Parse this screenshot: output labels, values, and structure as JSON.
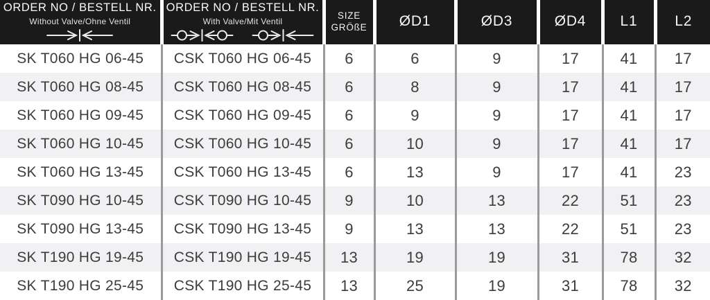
{
  "colors": {
    "header_bg": "#1a1a1a",
    "header_text": "#f5f5f5",
    "header_gap": "#ffffff",
    "body_divider": "#9a9a9a",
    "row_stripe": "#f1f1f3",
    "body_text": "#3c3c3c"
  },
  "table": {
    "columns": [
      {
        "title": "ORDER NO / BESTELL NR.",
        "subtitle": "Without Valve/Ohne Ventil",
        "icon": "coupling-without-valve-icon"
      },
      {
        "title": "ORDER NO / BESTELL NR.",
        "subtitle": "With Valve/Mit Ventil",
        "icons": [
          "coupling-with-valve-closed-icon",
          "coupling-with-valve-open-icon"
        ]
      },
      {
        "title": "SIZE",
        "subtitle": "GRÖßE"
      },
      {
        "title": "ØD1"
      },
      {
        "title": "ØD3"
      },
      {
        "title": "ØD4"
      },
      {
        "title": "L1"
      },
      {
        "title": "L2"
      }
    ],
    "rows": [
      [
        "SK T060 HG 06-45",
        "CSK T060 HG 06-45",
        "6",
        "6",
        "9",
        "17",
        "41",
        "17"
      ],
      [
        "SK T060 HG 08-45",
        "CSK T060 HG 08-45",
        "6",
        "8",
        "9",
        "17",
        "41",
        "17"
      ],
      [
        "SK T060 HG 09-45",
        "CSK T060 HG 09-45",
        "6",
        "9",
        "9",
        "17",
        "41",
        "17"
      ],
      [
        "SK T060 HG 10-45",
        "CSK T060 HG 10-45",
        "6",
        "10",
        "9",
        "17",
        "41",
        "17"
      ],
      [
        "SK T060 HG 13-45",
        "CSK T060 HG 13-45",
        "6",
        "13",
        "9",
        "17",
        "41",
        "23"
      ],
      [
        "SK T090 HG 10-45",
        "CSK T090 HG 10-45",
        "9",
        "10",
        "13",
        "22",
        "51",
        "23"
      ],
      [
        "SK T090 HG 13-45",
        "CSK T090 HG 13-45",
        "9",
        "13",
        "13",
        "22",
        "51",
        "23"
      ],
      [
        "SK T190 HG 19-45",
        "CSK T190 HG 19-45",
        "13",
        "19",
        "19",
        "31",
        "78",
        "32"
      ],
      [
        "SK T190 HG 25-45",
        "CSK T190 HG 25-45",
        "13",
        "25",
        "19",
        "31",
        "78",
        "32"
      ]
    ]
  }
}
